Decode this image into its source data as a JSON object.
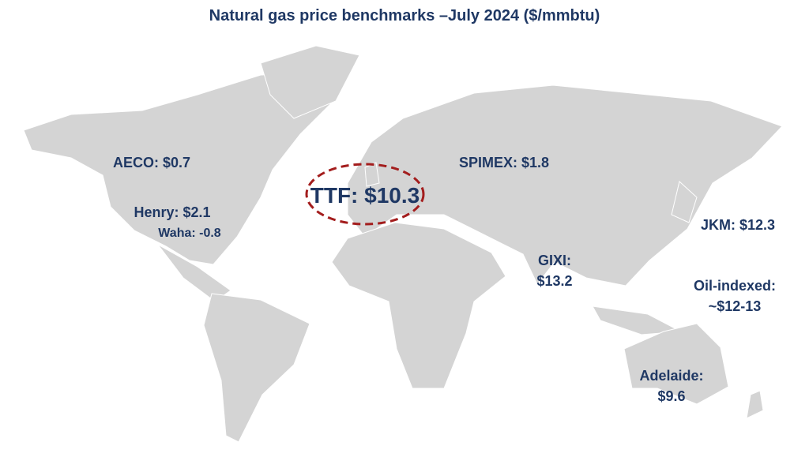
{
  "title": "Natural gas price benchmarks –July 2024 ($/mmbtu)",
  "labels": [
    {
      "lines": [
        "AECO: $0.7"
      ]
    },
    {
      "lines": [
        "Henry: $2.1"
      ]
    },
    {
      "lines": [
        "Waha: -0.8"
      ]
    },
    {
      "lines": [
        "TTF: $10.3"
      ]
    },
    {
      "lines": [
        "SPIMEX: $1.8"
      ]
    },
    {
      "lines": [
        "JKM: $12.3"
      ]
    },
    {
      "lines": [
        "GIXI:",
        "$13.2"
      ]
    },
    {
      "lines": [
        "Oil-indexed:",
        "~$12-13"
      ]
    },
    {
      "lines": [
        "Adelaide:",
        "$9.6"
      ]
    }
  ]
}
